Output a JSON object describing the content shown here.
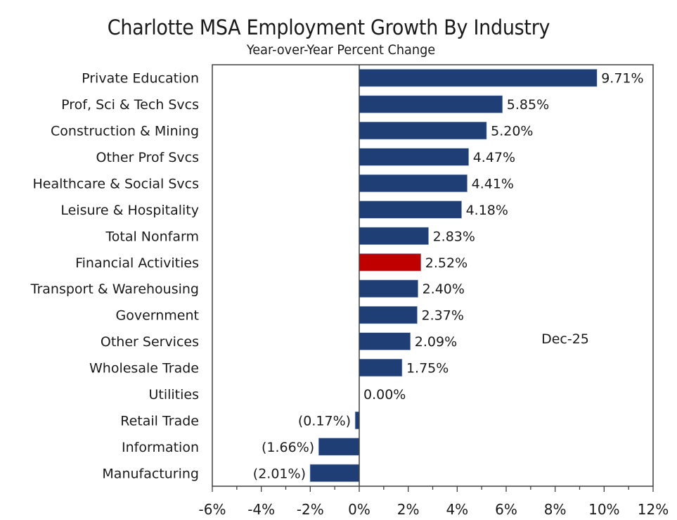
{
  "chart_data": {
    "type": "bar",
    "orientation": "horizontal",
    "title": "Charlotte MSA Employment Growth By Industry",
    "subtitle": "Year-over-Year Percent Change",
    "annotation": "Dec-25",
    "xlabel": "",
    "ylabel": "",
    "xlim": [
      -6,
      12
    ],
    "x_ticks": [
      -6,
      -4,
      -2,
      0,
      2,
      4,
      6,
      8,
      10,
      12
    ],
    "x_tick_labels": [
      "-6%",
      "-4%",
      "-2%",
      "0%",
      "2%",
      "4%",
      "6%",
      "8%",
      "10%",
      "12%"
    ],
    "grid": false,
    "legend": "none",
    "categories": [
      "Private Education",
      "Prof, Sci & Tech Svcs",
      "Construction & Mining",
      "Other Prof Svcs",
      "Healthcare & Social Svcs",
      "Leisure & Hospitality",
      "Total Nonfarm",
      "Financial Activities",
      "Transport & Warehousing",
      "Government",
      "Other Services",
      "Wholesale Trade",
      "Utilities",
      "Retail Trade",
      "Information",
      "Manufacturing"
    ],
    "values": [
      9.71,
      5.85,
      5.2,
      4.47,
      4.41,
      4.18,
      2.83,
      2.52,
      2.4,
      2.37,
      2.09,
      1.75,
      0.0,
      -0.17,
      -1.66,
      -2.01
    ],
    "data_labels": [
      "9.71%",
      "5.85%",
      "5.20%",
      "4.47%",
      "4.41%",
      "4.18%",
      "2.83%",
      "2.52%",
      "2.40%",
      "2.37%",
      "2.09%",
      "1.75%",
      "0.00%",
      "(0.17%)",
      "(1.66%)",
      "(2.01%)"
    ],
    "highlight_category": "Financial Activities",
    "colors": {
      "bar": "#1f3e75",
      "highlight": "#c00000",
      "axis": "#404040"
    }
  }
}
